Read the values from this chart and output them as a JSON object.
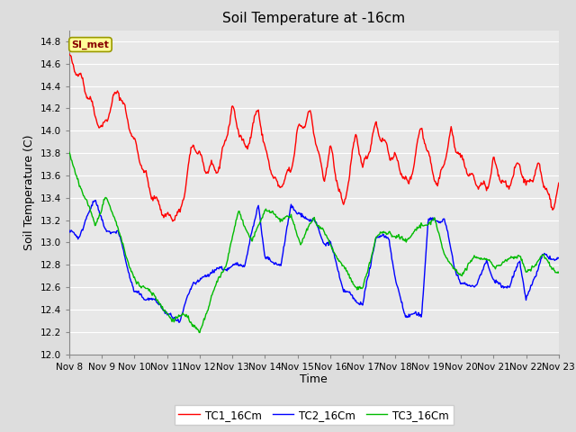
{
  "title": "Soil Temperature at -16cm",
  "xlabel": "Time",
  "ylabel": "Soil Temperature (C)",
  "ylim": [
    12.0,
    14.9
  ],
  "yticks": [
    12.0,
    12.2,
    12.4,
    12.6,
    12.8,
    13.0,
    13.2,
    13.4,
    13.6,
    13.8,
    14.0,
    14.2,
    14.4,
    14.6,
    14.8
  ],
  "xtick_labels": [
    "Nov 8",
    "Nov 9",
    "Nov 10",
    "Nov 11",
    "Nov 12",
    "Nov 13",
    "Nov 14",
    "Nov 15",
    "Nov 16",
    "Nov 17",
    "Nov 18",
    "Nov 19",
    "Nov 20",
    "Nov 21",
    "Nov 22",
    "Nov 23"
  ],
  "line_colors": [
    "#ff0000",
    "#0000ff",
    "#00bb00"
  ],
  "line_labels": [
    "TC1_16Cm",
    "TC2_16Cm",
    "TC3_16Cm"
  ],
  "bg_color": "#dddddd",
  "plot_bg_color": "#e8e8e8",
  "grid_color": "#ffffff",
  "annotation_text": "SI_met",
  "annotation_bg": "#ffff99",
  "annotation_border": "#999900",
  "annotation_text_color": "#880000",
  "title_fontsize": 11,
  "axis_fontsize": 9,
  "tick_fontsize": 7.5
}
